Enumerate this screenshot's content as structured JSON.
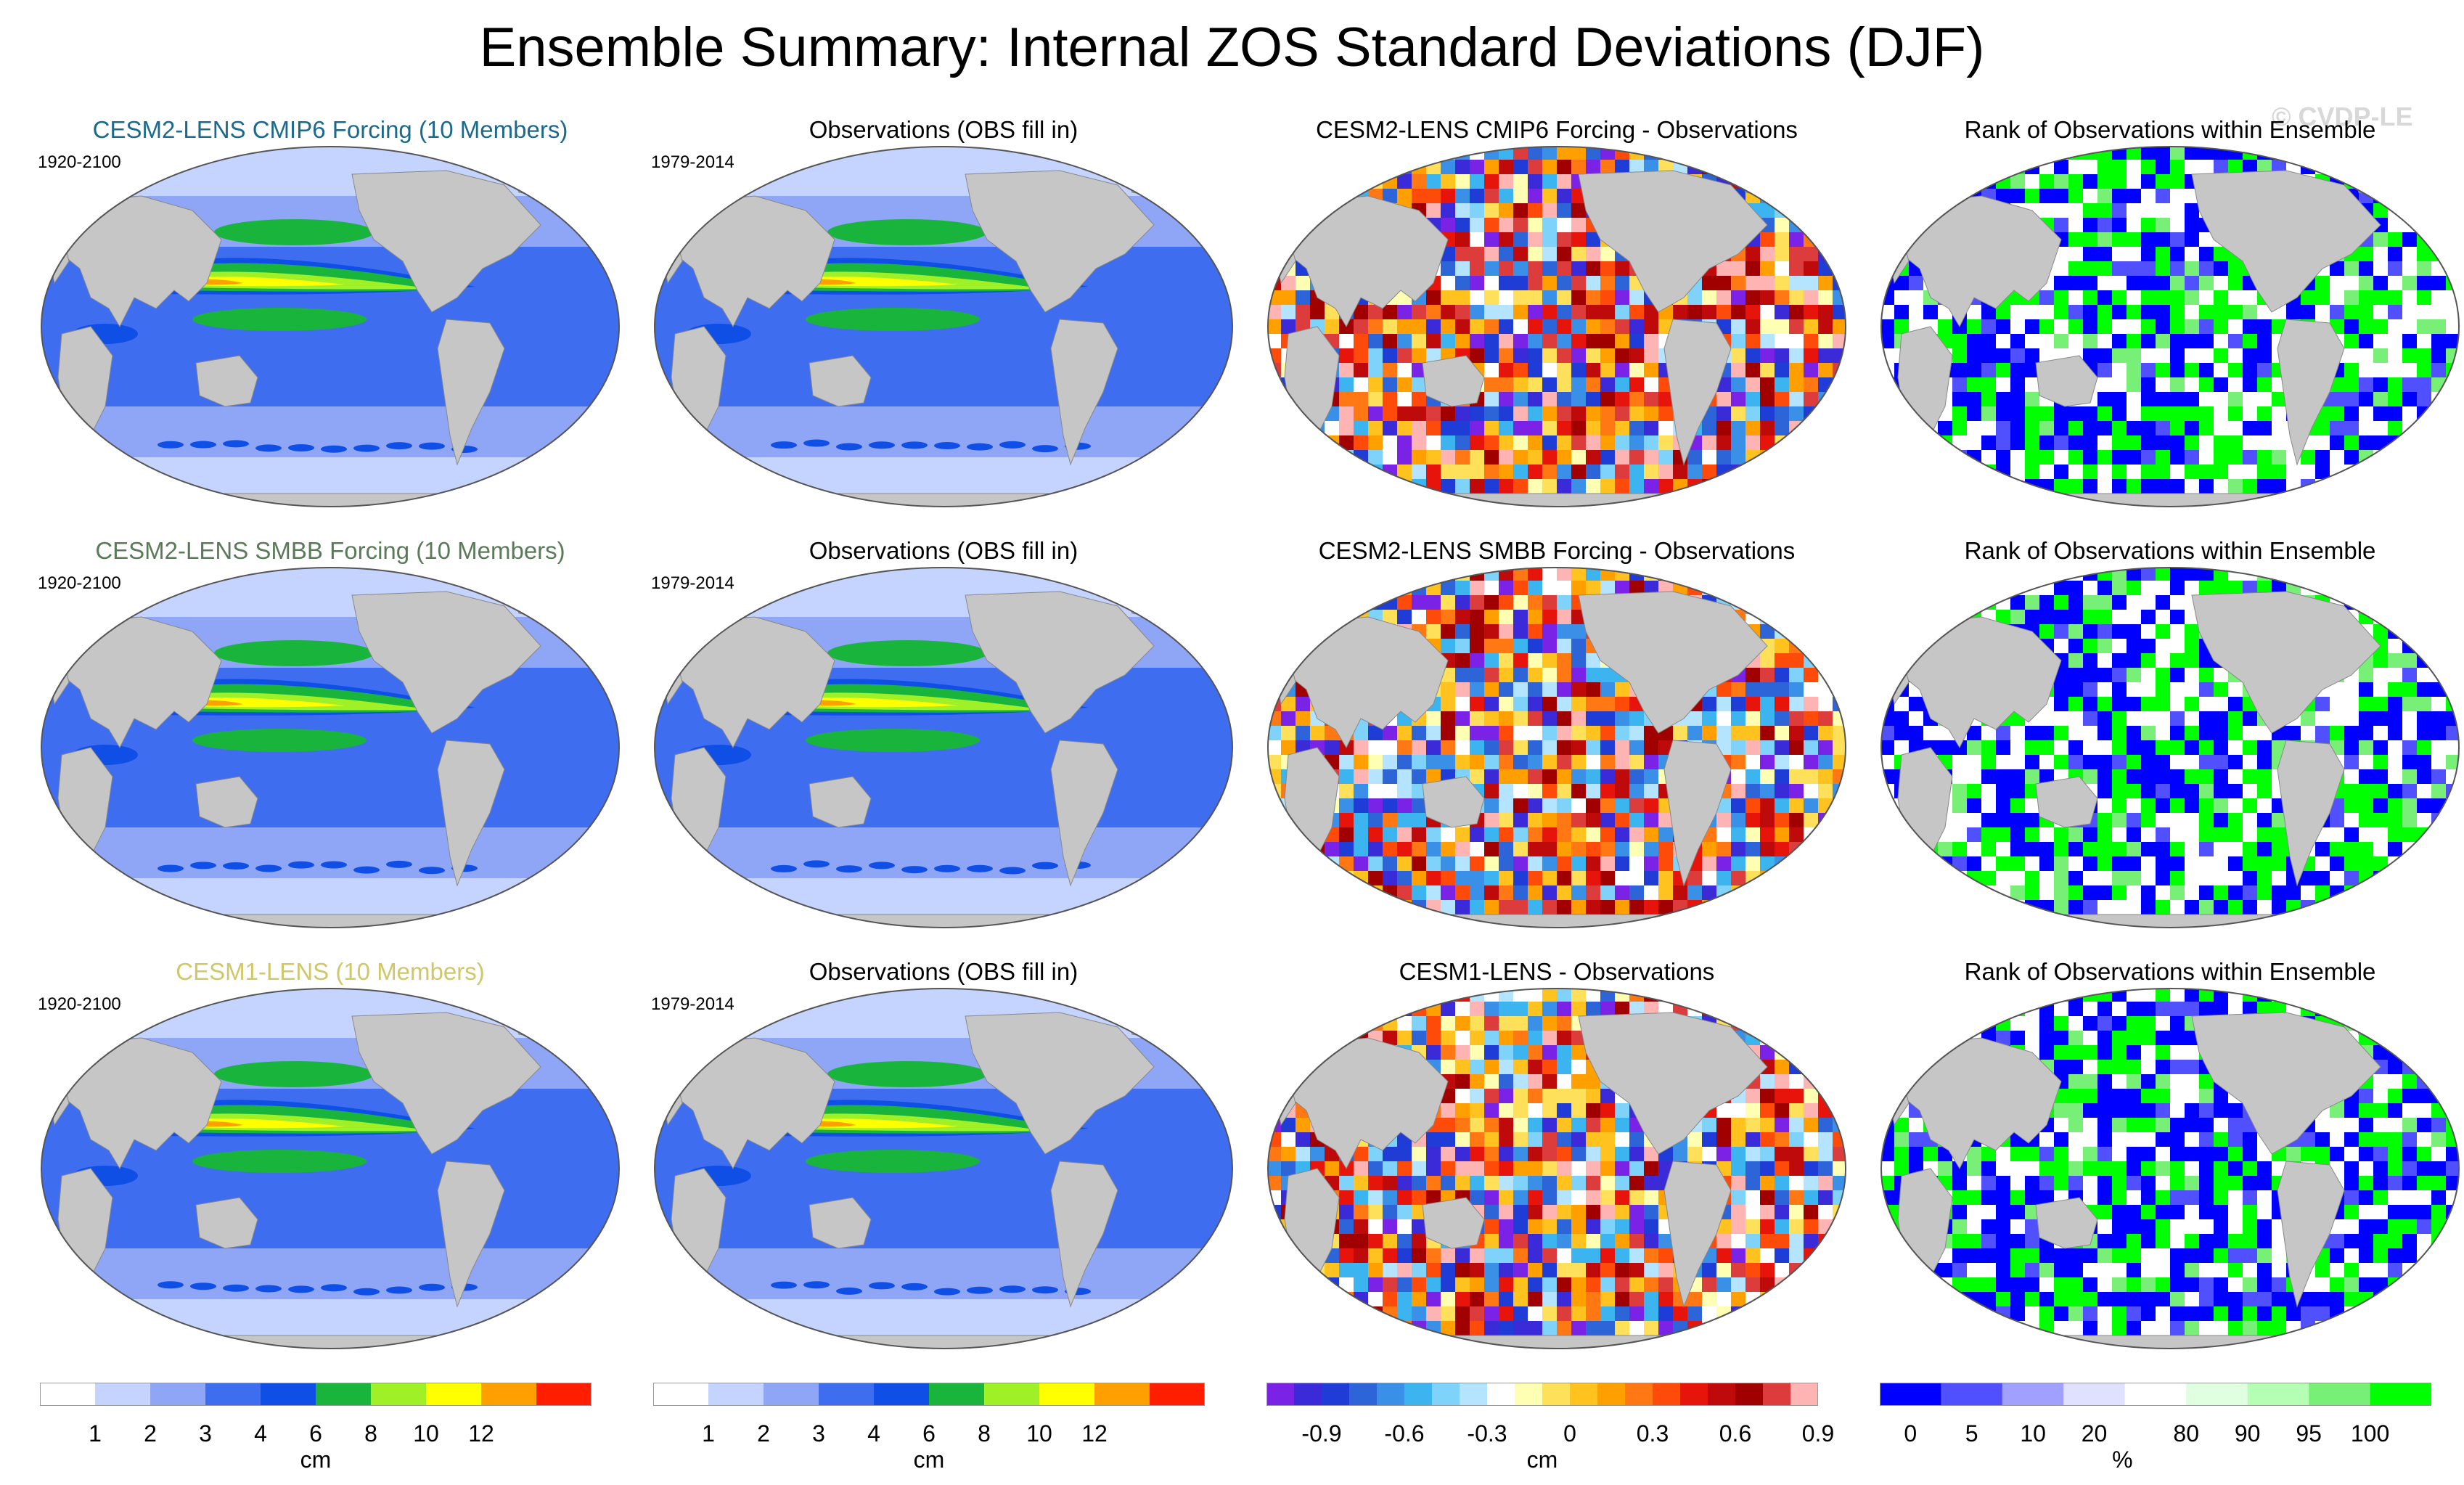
{
  "title": "Ensemble Summary: Internal ZOS Standard Deviations (DJF)",
  "watermark": "© CVDP-LE",
  "colors": {
    "land": "#c6c6c6",
    "sd_scale": [
      "#ffffff",
      "#c5d3ff",
      "#8fa5f5",
      "#3f6df0",
      "#0f4fe6",
      "#19b43c",
      "#a0f028",
      "#ffff00",
      "#ffa000",
      "#ff1e00"
    ],
    "diff_scale": [
      "#7a22e6",
      "#3a2ad8",
      "#1f3cd6",
      "#2d64d8",
      "#3a8fe6",
      "#3cb4f0",
      "#7fd2fa",
      "#b4e4ff",
      "#ffffff",
      "#ffffb4",
      "#ffe05a",
      "#ffc21e",
      "#ffa000",
      "#ff7814",
      "#ff4b0a",
      "#e6140a",
      "#be0a0a",
      "#a00000",
      "#dc3c3c",
      "#ffb4b4"
    ],
    "rank_scale": [
      "#0000ff",
      "#5050ff",
      "#a0a0ff",
      "#e0e0ff",
      "#ffffff",
      "#e0ffe0",
      "#b4ffb4",
      "#78f078",
      "#00ff00"
    ]
  },
  "rows": [
    {
      "model_title": "CESM2-LENS CMIP6 Forcing (10 Members)",
      "model_title_color": "#1b6a8c",
      "model_period": "1920-2100",
      "obs_title": "Observations (OBS fill in)",
      "obs_period": "1979-2014",
      "diff_title": "CESM2-LENS CMIP6 Forcing - Observations",
      "rank_title": "Rank of Observations within Ensemble"
    },
    {
      "model_title": "CESM2-LENS SMBB Forcing (10 Members)",
      "model_title_color": "#5a7a5a",
      "model_period": "1920-2100",
      "obs_title": "Observations (OBS fill in)",
      "obs_period": "1979-2014",
      "diff_title": "CESM2-LENS SMBB Forcing - Observations",
      "rank_title": "Rank of Observations within Ensemble"
    },
    {
      "model_title": "CESM1-LENS (10 Members)",
      "model_title_color": "#cfc76a",
      "model_period": "1920-2100",
      "obs_title": "Observations (OBS fill in)",
      "obs_period": "1979-2014",
      "diff_title": "CESM1-LENS - Observations",
      "rank_title": "Rank of Observations within Ensemble"
    }
  ],
  "colorbars": {
    "model_sd": {
      "ticks": [
        "1",
        "2",
        "3",
        "4",
        "6",
        "8",
        "10",
        "12"
      ],
      "unit": "cm"
    },
    "obs_sd": {
      "ticks": [
        "1",
        "2",
        "3",
        "4",
        "6",
        "8",
        "10",
        "12"
      ],
      "unit": "cm"
    },
    "difference": {
      "ticks": [
        "-0.9",
        "-0.6",
        "-0.3",
        "0",
        "0.3",
        "0.6",
        "0.9"
      ],
      "unit": "cm"
    },
    "rank": {
      "ticks": [
        "0",
        "5",
        "10",
        "20",
        "80",
        "90",
        "95",
        "100"
      ],
      "unit": "%"
    }
  },
  "chart_data": [
    {
      "type": "heatmap",
      "title": "CESM2-LENS CMIP6 Forcing (10 Members)",
      "period": "1920-2100",
      "variable": "Internal ZOS standard deviation",
      "units": "cm",
      "levels": [
        1,
        2,
        3,
        4,
        6,
        8,
        10,
        12
      ]
    },
    {
      "type": "heatmap",
      "title": "Observations (OBS fill in)",
      "period": "1979-2014",
      "units": "cm",
      "levels": [
        1,
        2,
        3,
        4,
        6,
        8,
        10,
        12
      ]
    },
    {
      "type": "heatmap",
      "title": "CESM2-LENS CMIP6 Forcing - Observations",
      "units": "cm",
      "levels": [
        -0.9,
        -0.6,
        -0.3,
        0,
        0.3,
        0.6,
        0.9
      ]
    },
    {
      "type": "heatmap",
      "title": "Rank of Observations within Ensemble",
      "units": "%",
      "levels": [
        0,
        5,
        10,
        20,
        80,
        90,
        95,
        100
      ]
    },
    {
      "type": "heatmap",
      "title": "CESM2-LENS SMBB Forcing (10 Members)",
      "period": "1920-2100",
      "units": "cm"
    },
    {
      "type": "heatmap",
      "title": "Observations (OBS fill in)",
      "period": "1979-2014",
      "units": "cm"
    },
    {
      "type": "heatmap",
      "title": "CESM2-LENS SMBB Forcing - Observations",
      "units": "cm"
    },
    {
      "type": "heatmap",
      "title": "Rank of Observations within Ensemble",
      "units": "%"
    },
    {
      "type": "heatmap",
      "title": "CESM1-LENS (10 Members)",
      "period": "1920-2100",
      "units": "cm"
    },
    {
      "type": "heatmap",
      "title": "Observations (OBS fill in)",
      "period": "1979-2014",
      "units": "cm"
    },
    {
      "type": "heatmap",
      "title": "CESM1-LENS - Observations",
      "units": "cm"
    },
    {
      "type": "heatmap",
      "title": "Rank of Observations within Ensemble",
      "units": "%"
    }
  ]
}
